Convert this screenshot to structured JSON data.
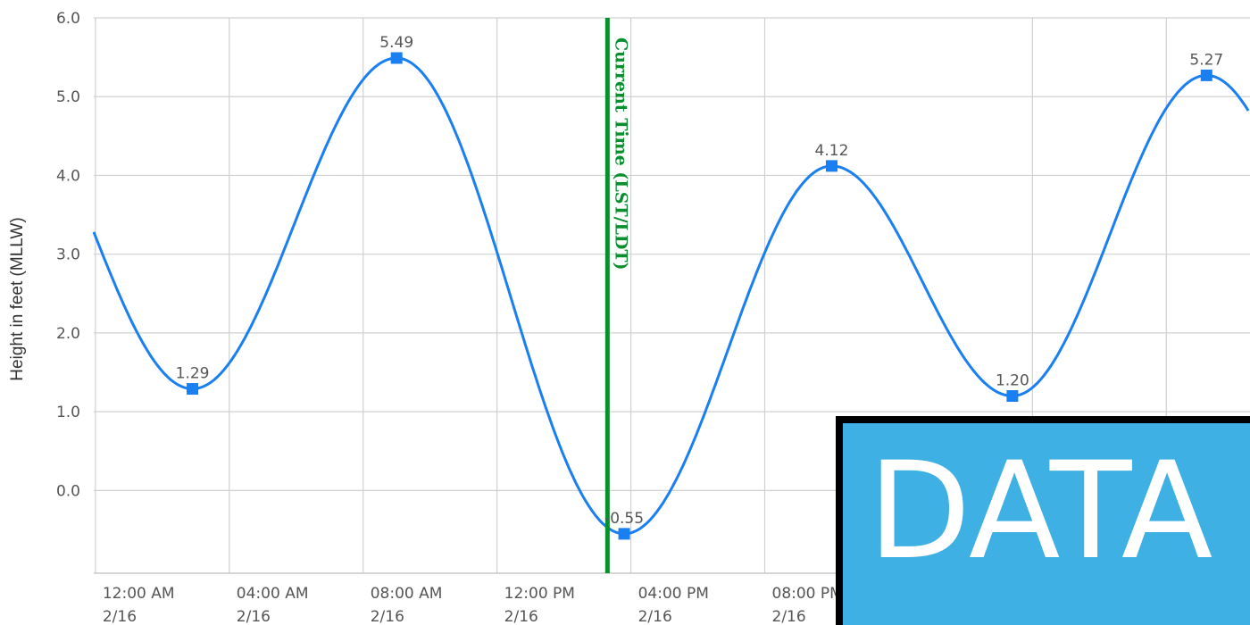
{
  "chart_data": {
    "type": "line",
    "ylabel": "Height in feet (MLLW)",
    "xlabel": "",
    "title": "",
    "x_tick_labels": [
      {
        "time": "12:00 AM",
        "date": "2/16"
      },
      {
        "time": "04:00 AM",
        "date": "2/16"
      },
      {
        "time": "08:00 AM",
        "date": "2/16"
      },
      {
        "time": "12:00 PM",
        "date": "2/16"
      },
      {
        "time": "04:00 PM",
        "date": "2/16"
      },
      {
        "time": "08:00 PM",
        "date": "2/16"
      }
    ],
    "y_tick_labels": [
      "6.0",
      "5.0",
      "4.0",
      "3.0",
      "2.0",
      "1.0",
      "0.0"
    ],
    "ylim": [
      -1.05,
      6.0
    ],
    "x_unit": "hours after 12:00 AM 2/16",
    "xlim": [
      -0.05,
      34.5
    ],
    "grid": true,
    "extrema": [
      {
        "hour": 2.9,
        "value": 1.29,
        "label": "1.29"
      },
      {
        "hour": 9.0,
        "value": 5.49,
        "label": "5.49"
      },
      {
        "hour": 15.8,
        "value": -0.55,
        "label": "-0.55"
      },
      {
        "hour": 22.0,
        "value": 4.12,
        "label": "4.12"
      },
      {
        "hour": 27.4,
        "value": 1.2,
        "label": "1.20"
      },
      {
        "hour": 33.2,
        "value": 5.27,
        "label": "5.27"
      }
    ],
    "current_time": {
      "hour": 15.3,
      "label": "Current Time (LST/LDT)"
    },
    "colors": {
      "line": "#1a7ff0",
      "marker": "#1a7ff0",
      "current_time": "#0a8f2f",
      "grid": "#d0d0d0"
    }
  },
  "overlay": {
    "text": "DATA",
    "color": "#3fb0e4"
  }
}
